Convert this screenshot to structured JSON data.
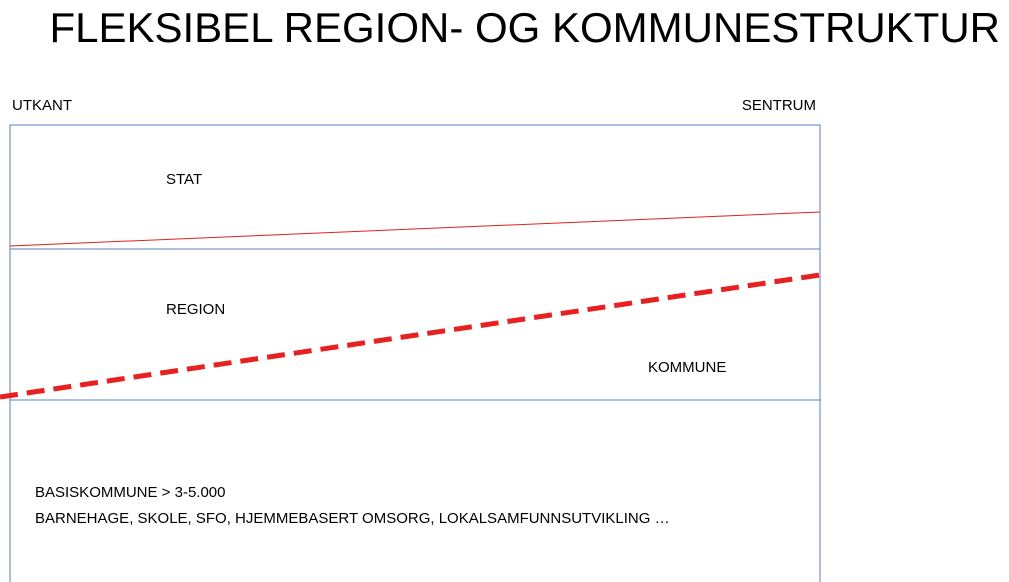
{
  "title": "FLEKSIBEL REGION- OG KOMMUNESTRUKTUR",
  "axis": {
    "left": "UTKANT",
    "right": "SENTRUM"
  },
  "bands": {
    "stat": "STAT",
    "region": "REGION",
    "kommune": "KOMMUNE"
  },
  "base": {
    "line1": "BASISKOMMUNE > 3-5.000",
    "line2": "BARNEHAGE, SKOLE, SFO, HJEMMEBASERT OMSORG, LOKALSAMFUNNSUTVIKLING …"
  }
}
